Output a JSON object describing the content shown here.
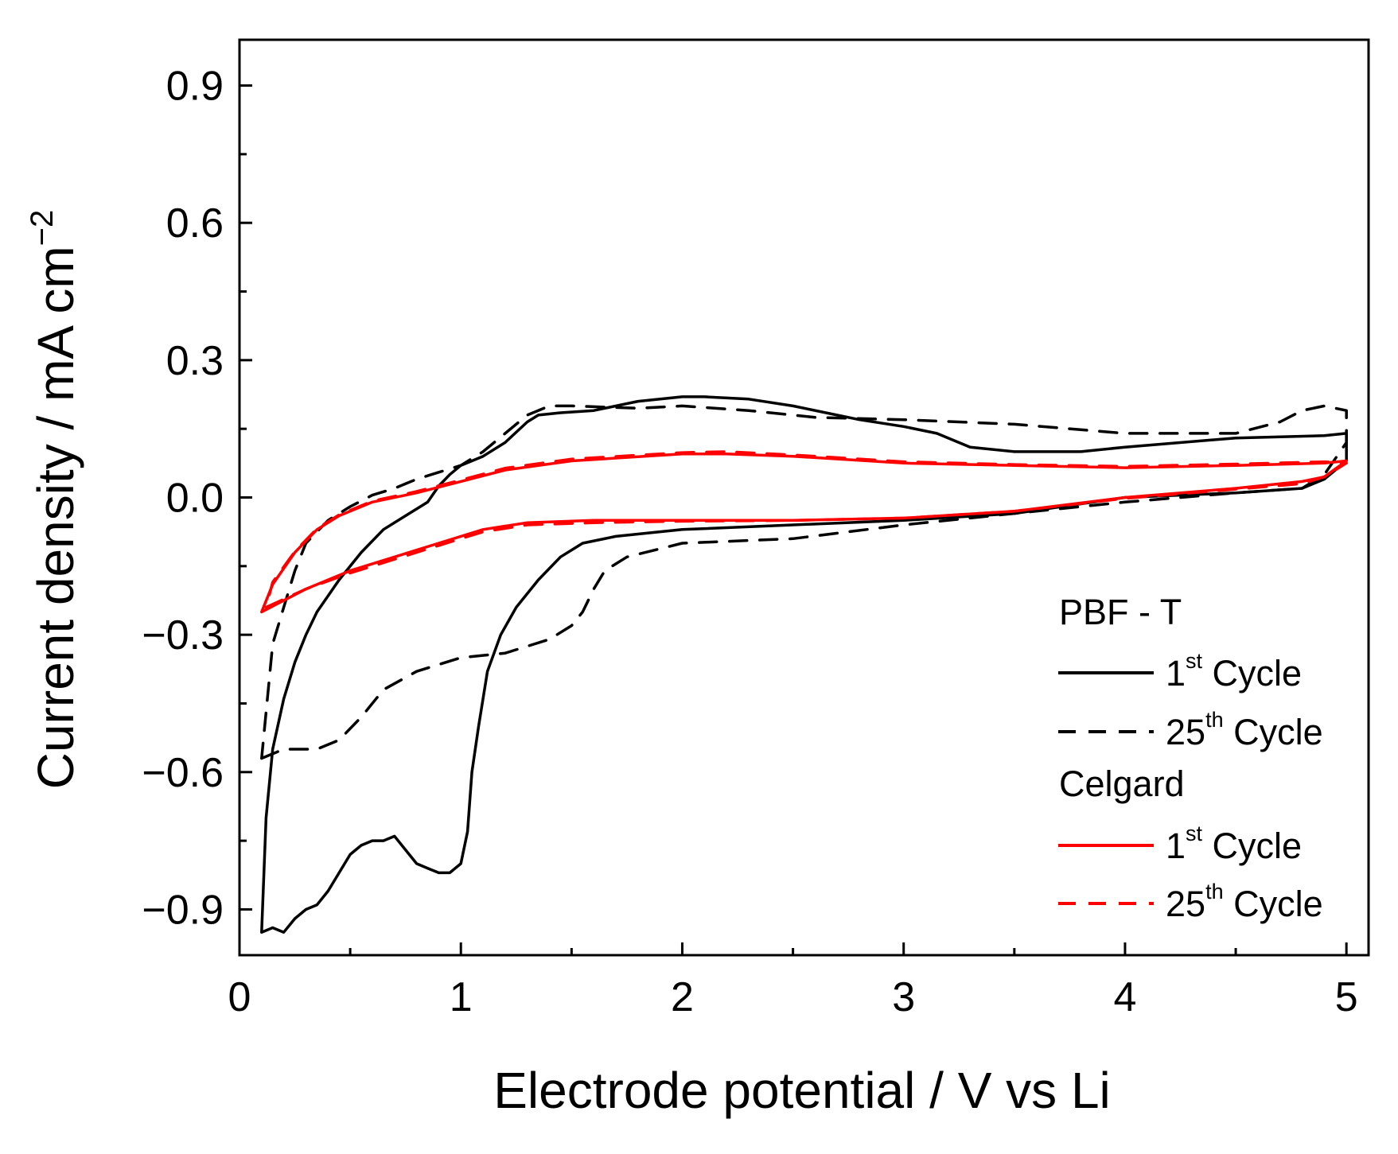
{
  "chart_data": {
    "type": "line",
    "xlabel": "Electrode potential / V vs Li",
    "ylabel": "Current density / mA cm",
    "ylabel_sup": "−2",
    "xlim": [
      0,
      5.1
    ],
    "ylim": [
      -1.0,
      1.0
    ],
    "xticks": [
      0,
      1,
      2,
      3,
      4,
      5
    ],
    "xtick_labels": [
      "0",
      "1",
      "2",
      "3",
      "4",
      "5"
    ],
    "yticks": [
      -0.9,
      -0.6,
      -0.3,
      0.0,
      0.3,
      0.6,
      0.9
    ],
    "ytick_labels": [
      "−0.9",
      "−0.6",
      "−0.3",
      "0.0",
      "0.3",
      "0.6",
      "0.9"
    ],
    "grid": false,
    "legend_position": "bottom-right",
    "legend": {
      "groups": [
        {
          "title": "PBF - T",
          "entries": [
            {
              "pre": "1",
              "sup": "st",
              "post": " Cycle",
              "color": "#000000",
              "dash": "solid"
            },
            {
              "pre": "25",
              "sup": "th",
              "post": " Cycle",
              "color": "#000000",
              "dash": "dashed"
            }
          ]
        },
        {
          "title": "Celgard",
          "entries": [
            {
              "pre": "1",
              "sup": "st",
              "post": " Cycle",
              "color": "#ff0000",
              "dash": "solid"
            },
            {
              "pre": "25",
              "sup": "th",
              "post": " Cycle",
              "color": "#ff0000",
              "dash": "dashed"
            }
          ]
        }
      ]
    },
    "series": [
      {
        "group": "PBF - T",
        "cycle": "1st Cycle",
        "color": "#000000",
        "dash": "solid",
        "points": [
          [
            0.1,
            -0.95
          ],
          [
            0.15,
            -0.94
          ],
          [
            0.2,
            -0.95
          ],
          [
            0.25,
            -0.92
          ],
          [
            0.3,
            -0.9
          ],
          [
            0.35,
            -0.89
          ],
          [
            0.4,
            -0.86
          ],
          [
            0.45,
            -0.82
          ],
          [
            0.5,
            -0.78
          ],
          [
            0.55,
            -0.76
          ],
          [
            0.6,
            -0.75
          ],
          [
            0.65,
            -0.75
          ],
          [
            0.7,
            -0.74
          ],
          [
            0.75,
            -0.77
          ],
          [
            0.8,
            -0.8
          ],
          [
            0.85,
            -0.81
          ],
          [
            0.9,
            -0.82
          ],
          [
            0.95,
            -0.82
          ],
          [
            1.0,
            -0.8
          ],
          [
            1.03,
            -0.73
          ],
          [
            1.05,
            -0.6
          ],
          [
            1.08,
            -0.5
          ],
          [
            1.12,
            -0.38
          ],
          [
            1.18,
            -0.3
          ],
          [
            1.25,
            -0.24
          ],
          [
            1.35,
            -0.18
          ],
          [
            1.45,
            -0.13
          ],
          [
            1.55,
            -0.1
          ],
          [
            1.7,
            -0.085
          ],
          [
            2.0,
            -0.07
          ],
          [
            2.5,
            -0.06
          ],
          [
            3.0,
            -0.05
          ],
          [
            3.5,
            -0.035
          ],
          [
            4.0,
            0.0
          ],
          [
            4.5,
            0.01
          ],
          [
            4.8,
            0.02
          ],
          [
            4.9,
            0.04
          ],
          [
            5.0,
            0.08
          ],
          [
            5.0,
            0.14
          ],
          [
            4.9,
            0.135
          ],
          [
            4.5,
            0.13
          ],
          [
            4.0,
            0.11
          ],
          [
            3.8,
            0.1
          ],
          [
            3.5,
            0.1
          ],
          [
            3.3,
            0.11
          ],
          [
            3.15,
            0.14
          ],
          [
            3.0,
            0.155
          ],
          [
            2.8,
            0.17
          ],
          [
            2.5,
            0.2
          ],
          [
            2.3,
            0.215
          ],
          [
            2.1,
            0.22
          ],
          [
            2.0,
            0.22
          ],
          [
            1.8,
            0.21
          ],
          [
            1.6,
            0.19
          ],
          [
            1.45,
            0.185
          ],
          [
            1.35,
            0.18
          ],
          [
            1.3,
            0.165
          ],
          [
            1.2,
            0.12
          ],
          [
            1.1,
            0.09
          ],
          [
            1.0,
            0.07
          ],
          [
            0.95,
            0.05
          ],
          [
            0.9,
            0.025
          ],
          [
            0.85,
            -0.01
          ],
          [
            0.75,
            -0.04
          ],
          [
            0.65,
            -0.07
          ],
          [
            0.55,
            -0.12
          ],
          [
            0.45,
            -0.18
          ],
          [
            0.35,
            -0.25
          ],
          [
            0.3,
            -0.3
          ],
          [
            0.25,
            -0.36
          ],
          [
            0.2,
            -0.44
          ],
          [
            0.15,
            -0.55
          ],
          [
            0.12,
            -0.7
          ],
          [
            0.1,
            -0.95
          ]
        ]
      },
      {
        "group": "PBF - T",
        "cycle": "25th Cycle",
        "color": "#000000",
        "dash": "dashed",
        "points": [
          [
            0.1,
            -0.57
          ],
          [
            0.2,
            -0.55
          ],
          [
            0.3,
            -0.55
          ],
          [
            0.35,
            -0.55
          ],
          [
            0.45,
            -0.53
          ],
          [
            0.55,
            -0.48
          ],
          [
            0.65,
            -0.42
          ],
          [
            0.8,
            -0.38
          ],
          [
            1.0,
            -0.35
          ],
          [
            1.2,
            -0.34
          ],
          [
            1.4,
            -0.31
          ],
          [
            1.5,
            -0.28
          ],
          [
            1.55,
            -0.25
          ],
          [
            1.6,
            -0.2
          ],
          [
            1.65,
            -0.16
          ],
          [
            1.75,
            -0.13
          ],
          [
            2.0,
            -0.1
          ],
          [
            2.5,
            -0.09
          ],
          [
            3.0,
            -0.06
          ],
          [
            3.5,
            -0.035
          ],
          [
            4.0,
            -0.01
          ],
          [
            4.5,
            0.01
          ],
          [
            4.8,
            0.02
          ],
          [
            4.9,
            0.05
          ],
          [
            5.0,
            0.12
          ],
          [
            5.0,
            0.19
          ],
          [
            4.9,
            0.2
          ],
          [
            4.8,
            0.19
          ],
          [
            4.7,
            0.165
          ],
          [
            4.5,
            0.14
          ],
          [
            4.0,
            0.14
          ],
          [
            3.5,
            0.16
          ],
          [
            3.0,
            0.17
          ],
          [
            2.6,
            0.175
          ],
          [
            2.3,
            0.19
          ],
          [
            2.0,
            0.2
          ],
          [
            1.8,
            0.195
          ],
          [
            1.5,
            0.2
          ],
          [
            1.4,
            0.2
          ],
          [
            1.3,
            0.18
          ],
          [
            1.2,
            0.14
          ],
          [
            1.1,
            0.1
          ],
          [
            1.0,
            0.07
          ],
          [
            0.9,
            0.055
          ],
          [
            0.8,
            0.04
          ],
          [
            0.7,
            0.02
          ],
          [
            0.6,
            0.005
          ],
          [
            0.5,
            -0.02
          ],
          [
            0.4,
            -0.05
          ],
          [
            0.3,
            -0.1
          ],
          [
            0.25,
            -0.16
          ],
          [
            0.2,
            -0.24
          ],
          [
            0.15,
            -0.32
          ],
          [
            0.1,
            -0.57
          ]
        ]
      },
      {
        "group": "Celgard",
        "cycle": "1st Cycle",
        "color": "#ff0000",
        "dash": "solid",
        "points": [
          [
            0.1,
            -0.25
          ],
          [
            0.3,
            -0.2
          ],
          [
            0.5,
            -0.16
          ],
          [
            0.7,
            -0.13
          ],
          [
            0.9,
            -0.1
          ],
          [
            1.1,
            -0.07
          ],
          [
            1.3,
            -0.055
          ],
          [
            1.6,
            -0.05
          ],
          [
            2.0,
            -0.05
          ],
          [
            2.5,
            -0.05
          ],
          [
            3.0,
            -0.045
          ],
          [
            3.5,
            -0.03
          ],
          [
            4.0,
            0.0
          ],
          [
            4.5,
            0.02
          ],
          [
            4.8,
            0.035
          ],
          [
            4.9,
            0.045
          ],
          [
            5.0,
            0.08
          ],
          [
            4.9,
            0.075
          ],
          [
            4.5,
            0.07
          ],
          [
            4.0,
            0.065
          ],
          [
            3.5,
            0.07
          ],
          [
            3.0,
            0.075
          ],
          [
            2.5,
            0.09
          ],
          [
            2.2,
            0.095
          ],
          [
            2.0,
            0.095
          ],
          [
            1.5,
            0.08
          ],
          [
            1.2,
            0.06
          ],
          [
            1.0,
            0.035
          ],
          [
            0.8,
            0.01
          ],
          [
            0.6,
            -0.01
          ],
          [
            0.45,
            -0.04
          ],
          [
            0.35,
            -0.07
          ],
          [
            0.25,
            -0.12
          ],
          [
            0.15,
            -0.19
          ],
          [
            0.1,
            -0.25
          ]
        ]
      },
      {
        "group": "Celgard",
        "cycle": "25th Cycle",
        "color": "#ff0000",
        "dash": "dashed",
        "points": [
          [
            0.12,
            -0.24
          ],
          [
            0.3,
            -0.2
          ],
          [
            0.5,
            -0.165
          ],
          [
            0.7,
            -0.135
          ],
          [
            0.9,
            -0.105
          ],
          [
            1.1,
            -0.075
          ],
          [
            1.3,
            -0.06
          ],
          [
            1.6,
            -0.055
          ],
          [
            2.0,
            -0.052
          ],
          [
            2.5,
            -0.05
          ],
          [
            3.0,
            -0.045
          ],
          [
            3.5,
            -0.03
          ],
          [
            4.0,
            -0.002
          ],
          [
            4.5,
            0.018
          ],
          [
            4.8,
            0.03
          ],
          [
            4.9,
            0.045
          ],
          [
            5.0,
            0.075
          ],
          [
            4.9,
            0.078
          ],
          [
            4.5,
            0.073
          ],
          [
            4.0,
            0.068
          ],
          [
            3.5,
            0.072
          ],
          [
            3.0,
            0.078
          ],
          [
            2.5,
            0.093
          ],
          [
            2.2,
            0.1
          ],
          [
            2.0,
            0.098
          ],
          [
            1.5,
            0.084
          ],
          [
            1.2,
            0.064
          ],
          [
            1.0,
            0.038
          ],
          [
            0.8,
            0.013
          ],
          [
            0.6,
            -0.008
          ],
          [
            0.45,
            -0.038
          ],
          [
            0.35,
            -0.068
          ],
          [
            0.25,
            -0.118
          ],
          [
            0.15,
            -0.185
          ],
          [
            0.12,
            -0.24
          ]
        ]
      }
    ]
  }
}
